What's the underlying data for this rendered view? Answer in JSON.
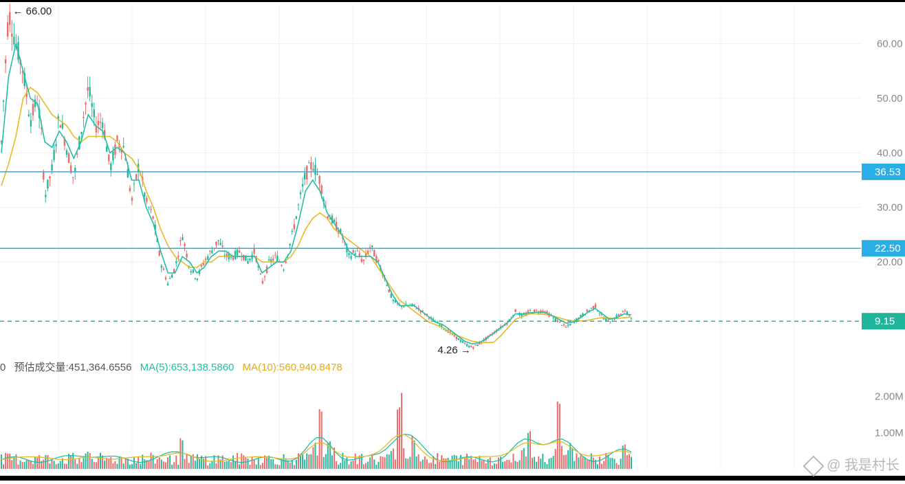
{
  "chart_data": {
    "type": "candlestick",
    "price_axis": {
      "ticks": [
        "60.00",
        "50.00",
        "40.00",
        "30.00",
        "20.00"
      ],
      "tick_values": [
        60,
        50,
        40,
        30,
        20
      ],
      "ylim": [
        2.5,
        67
      ]
    },
    "volume_axis": {
      "ticks": [
        "2.00M",
        "1.00M"
      ],
      "tick_values": [
        2000000,
        1000000
      ],
      "ylim": [
        0,
        2600000
      ]
    },
    "horizontal_lines": [
      {
        "value": 36.53,
        "label": "36.53",
        "style": "solid",
        "color": "#29aee6"
      },
      {
        "value": 22.5,
        "label": "22.50",
        "style": "solid",
        "color": "#29aee6"
      },
      {
        "value": 9.15,
        "label": "9.15",
        "style": "dashed",
        "color": "#1fb59a"
      }
    ],
    "annotations": [
      {
        "text": "← 66.00",
        "value": 66.0,
        "type": "high"
      },
      {
        "text": "4.26 →",
        "value": 4.26,
        "type": "low"
      }
    ],
    "price_series": [
      [
        0,
        42
      ],
      [
        0.5,
        55
      ],
      [
        1,
        66
      ],
      [
        2,
        60
      ],
      [
        3,
        55
      ],
      [
        4,
        46
      ],
      [
        5,
        50
      ],
      [
        5.5,
        44
      ],
      [
        6,
        32
      ],
      [
        7,
        37
      ],
      [
        8,
        47
      ],
      [
        9,
        41
      ],
      [
        10,
        35
      ],
      [
        11,
        44
      ],
      [
        12,
        52
      ],
      [
        13,
        45
      ],
      [
        14,
        46
      ],
      [
        15,
        37
      ],
      [
        16,
        42
      ],
      [
        17,
        41
      ],
      [
        18,
        31
      ],
      [
        19,
        38
      ],
      [
        20,
        31
      ],
      [
        21,
        28
      ],
      [
        22,
        20
      ],
      [
        23,
        16
      ],
      [
        24,
        19
      ],
      [
        25,
        25
      ],
      [
        26,
        19
      ],
      [
        27,
        17
      ],
      [
        28,
        20
      ],
      [
        29,
        22
      ],
      [
        30,
        24
      ],
      [
        31,
        21
      ],
      [
        32,
        21
      ],
      [
        33,
        22
      ],
      [
        34,
        20
      ],
      [
        35,
        22
      ],
      [
        36,
        16
      ],
      [
        37,
        20
      ],
      [
        38,
        21
      ],
      [
        39,
        19
      ],
      [
        40,
        24
      ],
      [
        41,
        30
      ],
      [
        42,
        36
      ],
      [
        43,
        38
      ],
      [
        44,
        35
      ],
      [
        45,
        29
      ],
      [
        46,
        27
      ],
      [
        47,
        25
      ],
      [
        48,
        21
      ],
      [
        49,
        22
      ],
      [
        50,
        20
      ],
      [
        51,
        23
      ],
      [
        52,
        20
      ],
      [
        53,
        17
      ],
      [
        54,
        13
      ],
      [
        55,
        12
      ],
      [
        56,
        12
      ],
      [
        57,
        12
      ],
      [
        58,
        11
      ],
      [
        59,
        10
      ],
      [
        60,
        9
      ],
      [
        61,
        8
      ],
      [
        62,
        7
      ],
      [
        63,
        6
      ],
      [
        64,
        5
      ],
      [
        65,
        4.3
      ],
      [
        66,
        5
      ],
      [
        67,
        6
      ],
      [
        68,
        7
      ],
      [
        69,
        8
      ],
      [
        70,
        9
      ],
      [
        71,
        11
      ],
      [
        72,
        10
      ],
      [
        73,
        11
      ],
      [
        74,
        11
      ],
      [
        75,
        11
      ],
      [
        76,
        10
      ],
      [
        77,
        9
      ],
      [
        78,
        8
      ],
      [
        79,
        9
      ],
      [
        80,
        10
      ],
      [
        81,
        11
      ],
      [
        82,
        12
      ],
      [
        83,
        10
      ],
      [
        84,
        9
      ],
      [
        85,
        10
      ],
      [
        86,
        11
      ],
      [
        87,
        10
      ]
    ],
    "ma_long_series": [
      [
        0,
        34
      ],
      [
        1,
        38
      ],
      [
        2,
        43
      ],
      [
        3,
        50
      ],
      [
        4,
        52
      ],
      [
        5,
        51
      ],
      [
        6,
        49
      ],
      [
        7,
        47
      ],
      [
        8,
        46
      ],
      [
        9,
        45
      ],
      [
        10,
        43
      ],
      [
        11,
        42
      ],
      [
        12,
        43
      ],
      [
        13,
        43
      ],
      [
        14,
        43
      ],
      [
        15,
        43
      ],
      [
        16,
        42
      ],
      [
        17,
        40
      ],
      [
        18,
        39
      ],
      [
        19,
        37
      ],
      [
        20,
        33
      ],
      [
        21,
        30
      ],
      [
        22,
        26
      ],
      [
        23,
        23
      ],
      [
        24,
        21
      ],
      [
        25,
        20
      ],
      [
        26,
        19
      ],
      [
        27,
        19
      ],
      [
        28,
        20
      ],
      [
        29,
        20
      ],
      [
        30,
        21
      ],
      [
        31,
        21
      ],
      [
        32,
        21
      ],
      [
        33,
        21
      ],
      [
        34,
        21
      ],
      [
        35,
        21
      ],
      [
        36,
        20
      ],
      [
        37,
        20
      ],
      [
        38,
        20
      ],
      [
        39,
        20
      ],
      [
        40,
        21
      ],
      [
        41,
        23
      ],
      [
        42,
        26
      ],
      [
        43,
        28
      ],
      [
        44,
        29
      ],
      [
        45,
        28
      ],
      [
        46,
        26
      ],
      [
        47,
        25
      ],
      [
        48,
        24
      ],
      [
        49,
        23
      ],
      [
        50,
        22
      ],
      [
        51,
        21
      ],
      [
        52,
        19
      ],
      [
        53,
        17
      ],
      [
        54,
        15
      ],
      [
        55,
        13
      ],
      [
        56,
        12
      ],
      [
        57,
        11
      ],
      [
        58,
        10
      ],
      [
        59,
        9
      ],
      [
        60,
        8.5
      ],
      [
        61,
        8
      ],
      [
        62,
        7
      ],
      [
        63,
        6.5
      ],
      [
        64,
        6
      ],
      [
        65,
        5.5
      ],
      [
        66,
        5.3
      ],
      [
        67,
        5.2
      ],
      [
        68,
        5.3
      ],
      [
        69,
        6.5
      ],
      [
        70,
        8
      ],
      [
        71,
        9.5
      ],
      [
        72,
        10
      ],
      [
        73,
        10.5
      ],
      [
        74,
        10.5
      ],
      [
        75,
        10.4
      ],
      [
        76,
        10.2
      ],
      [
        77,
        9.8
      ],
      [
        78,
        9.4
      ],
      [
        79,
        9.2
      ],
      [
        80,
        9.2
      ],
      [
        81,
        9.3
      ],
      [
        82,
        9.6
      ],
      [
        83,
        9.8
      ],
      [
        84,
        9.7
      ],
      [
        85,
        9.6
      ],
      [
        86,
        9.8
      ],
      [
        87,
        9.9
      ]
    ],
    "ma_short_series": [
      [
        0,
        40
      ],
      [
        1,
        54
      ],
      [
        2,
        60
      ],
      [
        3,
        55
      ],
      [
        4,
        50
      ],
      [
        5,
        49
      ],
      [
        6,
        42
      ],
      [
        7,
        41
      ],
      [
        8,
        44
      ],
      [
        9,
        42
      ],
      [
        10,
        39
      ],
      [
        11,
        42
      ],
      [
        12,
        47
      ],
      [
        13,
        45
      ],
      [
        14,
        44
      ],
      [
        15,
        40
      ],
      [
        16,
        41
      ],
      [
        17,
        40
      ],
      [
        18,
        35
      ],
      [
        19,
        35
      ],
      [
        20,
        30
      ],
      [
        21,
        27
      ],
      [
        22,
        22
      ],
      [
        23,
        18
      ],
      [
        24,
        18
      ],
      [
        25,
        21
      ],
      [
        26,
        20
      ],
      [
        27,
        18
      ],
      [
        28,
        19
      ],
      [
        29,
        21
      ],
      [
        30,
        22
      ],
      [
        31,
        22
      ],
      [
        32,
        21
      ],
      [
        33,
        21
      ],
      [
        34,
        21
      ],
      [
        35,
        21
      ],
      [
        36,
        18
      ],
      [
        37,
        19
      ],
      [
        38,
        20
      ],
      [
        39,
        20
      ],
      [
        40,
        22
      ],
      [
        41,
        27
      ],
      [
        42,
        33
      ],
      [
        43,
        35
      ],
      [
        44,
        33
      ],
      [
        45,
        29
      ],
      [
        46,
        27
      ],
      [
        47,
        25
      ],
      [
        48,
        22
      ],
      [
        49,
        21
      ],
      [
        50,
        21
      ],
      [
        51,
        21
      ],
      [
        52,
        20
      ],
      [
        53,
        17
      ],
      [
        54,
        14
      ],
      [
        55,
        12
      ],
      [
        56,
        12
      ],
      [
        57,
        12
      ],
      [
        58,
        11
      ],
      [
        59,
        10
      ],
      [
        60,
        9
      ],
      [
        61,
        8.5
      ],
      [
        62,
        7.5
      ],
      [
        63,
        6.5
      ],
      [
        64,
        5.5
      ],
      [
        65,
        5
      ],
      [
        66,
        5.2
      ],
      [
        67,
        6
      ],
      [
        68,
        7
      ],
      [
        69,
        8
      ],
      [
        70,
        9
      ],
      [
        71,
        10.5
      ],
      [
        72,
        10.5
      ],
      [
        73,
        10.7
      ],
      [
        74,
        10.8
      ],
      [
        75,
        10.8
      ],
      [
        76,
        10.2
      ],
      [
        77,
        9.5
      ],
      [
        78,
        8.8
      ],
      [
        79,
        9
      ],
      [
        80,
        9.8
      ],
      [
        81,
        10.8
      ],
      [
        82,
        11.5
      ],
      [
        83,
        10.5
      ],
      [
        84,
        9.5
      ],
      [
        85,
        9.8
      ],
      [
        86,
        10.5
      ],
      [
        87,
        10.3
      ]
    ],
    "volume_legend": {
      "prefix": "0",
      "estimated_label": "预估成交量:451,364.6556",
      "ma5_label": "MA(5):653,138.5860",
      "ma10_label": "MA(10):560,940.8478"
    },
    "volume_spikes": [
      [
        12,
        600000
      ],
      [
        25,
        900000
      ],
      [
        44,
        2200000
      ],
      [
        55,
        2300000
      ],
      [
        57,
        1000000
      ],
      [
        72,
        700000
      ],
      [
        73,
        1400000
      ],
      [
        77,
        2100000
      ],
      [
        86,
        900000
      ]
    ],
    "colors": {
      "up": "#26b89a",
      "down": "#ee6a6a",
      "ma_long": "#e8b923",
      "ma_short": "#1fbfa6",
      "axis_text": "#888888",
      "grid": "#f1f1f1"
    }
  },
  "watermark": {
    "text": "@ 我是村长",
    "icon": "diamond-logo-icon"
  }
}
